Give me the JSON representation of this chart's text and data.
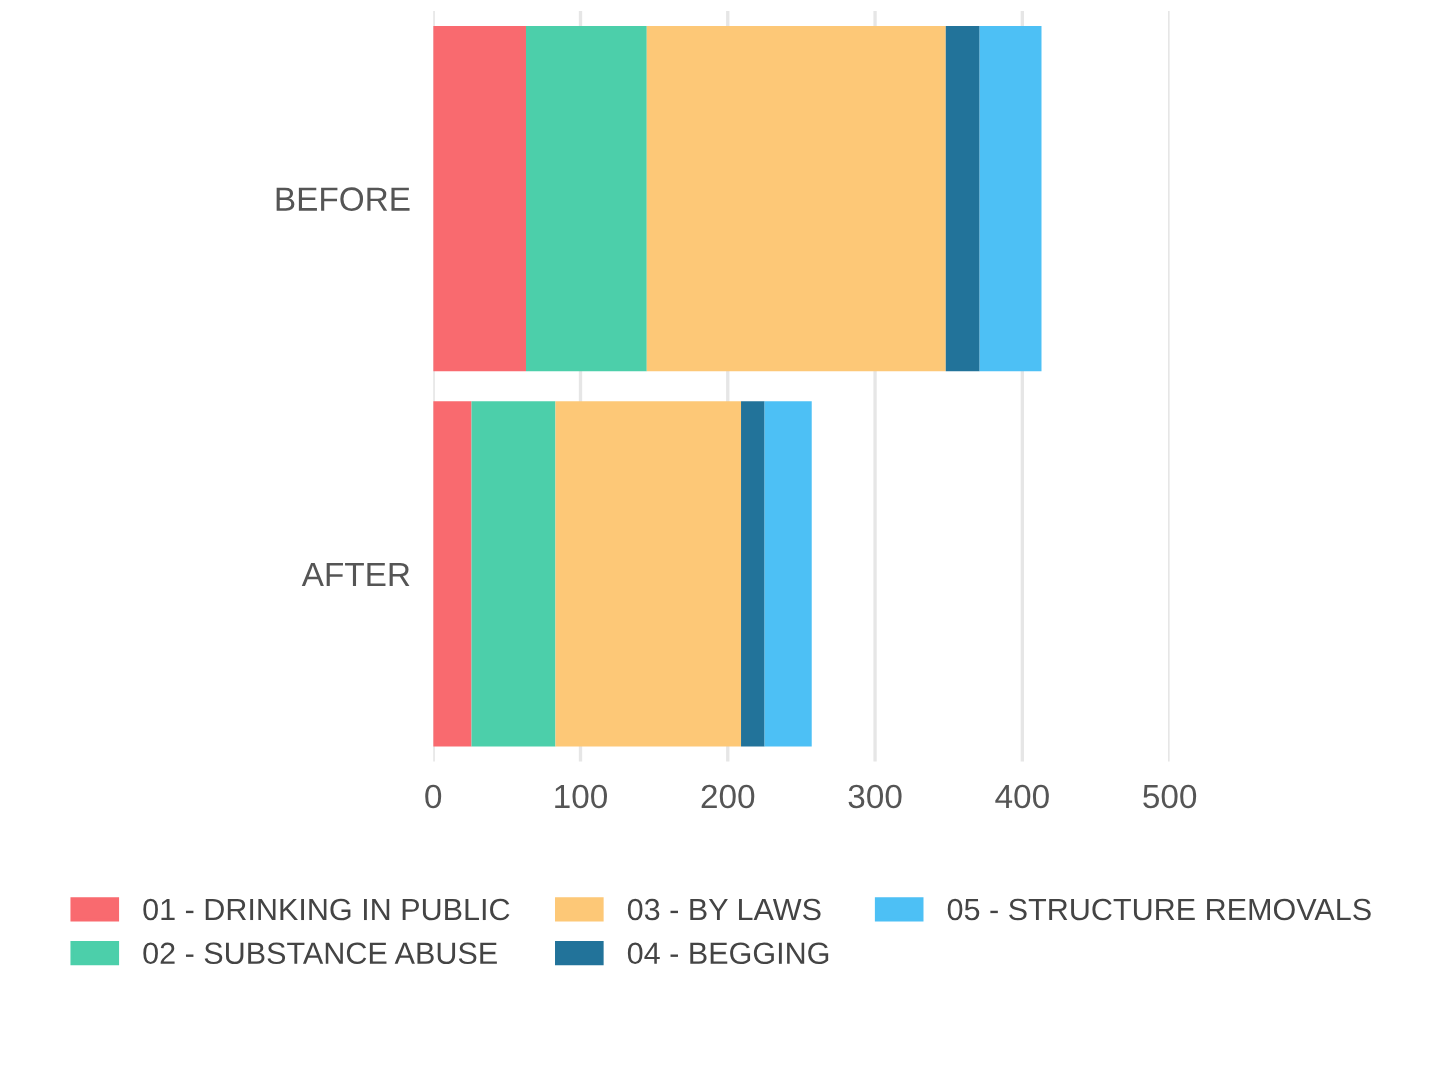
{
  "chart_data": {
    "type": "bar",
    "orientation": "horizontal",
    "stacked": true,
    "categories": [
      "BEFORE",
      "AFTER"
    ],
    "series": [
      {
        "name": "01 - DRINKING IN PUBLIC",
        "color": "#f96a6f",
        "values": [
          63,
          26
        ]
      },
      {
        "name": "02 - SUBSTANCE ABUSE",
        "color": "#4ccfaa",
        "values": [
          82,
          57
        ]
      },
      {
        "name": "03 - BY LAWS",
        "color": "#fdc877",
        "values": [
          203,
          126
        ]
      },
      {
        "name": "04 - BEGGING",
        "color": "#22739a",
        "values": [
          23,
          16
        ]
      },
      {
        "name": "05 - STRUCTURE REMOVALS",
        "color": "#4dc0f5",
        "values": [
          42,
          32
        ]
      }
    ],
    "xlim": [
      0,
      500
    ],
    "xticks": [
      0,
      100,
      200,
      300,
      400,
      500
    ],
    "grid": "x",
    "legend": "bottom"
  }
}
